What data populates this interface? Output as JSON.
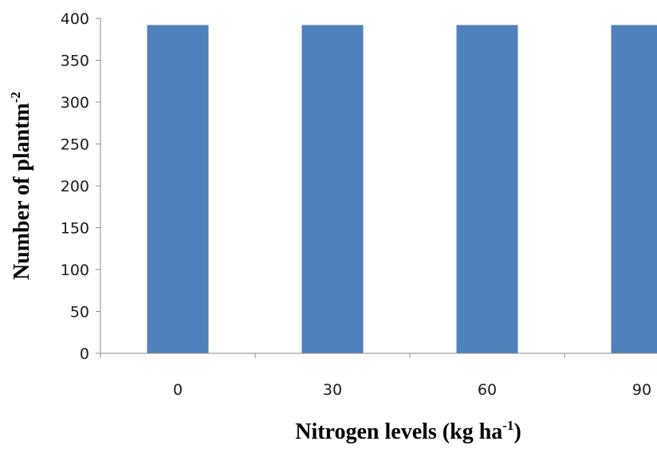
{
  "chart_data": {
    "type": "bar",
    "categories": [
      "0",
      "30",
      "60",
      "90"
    ],
    "values": [
      392,
      392,
      392,
      392
    ],
    "xlabel": {
      "text": "Nitrogen levels (kg ha",
      "sup": "-1",
      "suffix": ")"
    },
    "ylabel": {
      "text": "Number of plantm",
      "sup": "-2"
    },
    "ylim": [
      0,
      400
    ],
    "yticks": [
      0,
      50,
      100,
      150,
      200,
      250,
      300,
      350,
      400
    ],
    "grid": false,
    "legend": "none",
    "bar_color": "#4F81BD"
  }
}
